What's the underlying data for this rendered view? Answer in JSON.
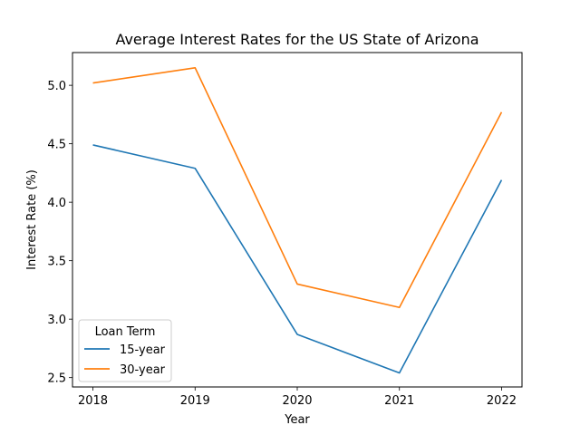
{
  "chart_data": {
    "type": "line",
    "title": "Average Interest Rates for the US State of Arizona",
    "xlabel": "Year",
    "ylabel": "Interest Rate (%)",
    "x": [
      2018,
      2019,
      2020,
      2021,
      2022
    ],
    "x_tick_labels": [
      "2018",
      "2019",
      "2020",
      "2021",
      "2022"
    ],
    "y_ticks": [
      2.5,
      3.0,
      3.5,
      4.0,
      4.5,
      5.0
    ],
    "y_tick_labels": [
      "2.5",
      "3.0",
      "3.5",
      "4.0",
      "4.5",
      "5.0"
    ],
    "xlim": [
      2017.8,
      2022.2
    ],
    "ylim": [
      2.42,
      5.28
    ],
    "grid": false,
    "legend": {
      "title": "Loan Term",
      "placement": "lower-left"
    },
    "series": [
      {
        "name": "15-year",
        "color": "#1f77b4",
        "values": [
          4.49,
          4.29,
          2.87,
          2.54,
          4.19
        ]
      },
      {
        "name": "30-year",
        "color": "#ff7f0e",
        "values": [
          5.02,
          5.15,
          3.3,
          3.1,
          4.77
        ]
      }
    ]
  }
}
